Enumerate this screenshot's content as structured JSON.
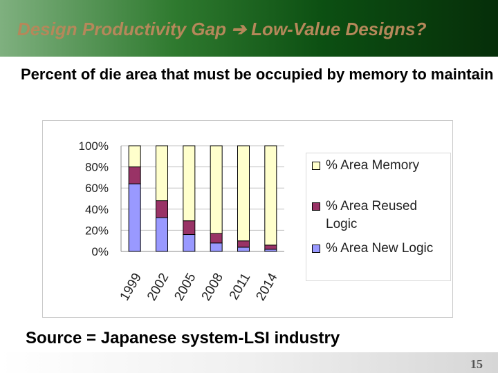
{
  "slide": {
    "title": "Design Productivity Gap ➔ Low-Value Designs?",
    "subtitle": "Percent of die area that must be occupied by memory to maintain SOC design productivity",
    "source": "Source = Japanese system-LSI industry",
    "page_number": "15"
  },
  "chart_data": {
    "type": "bar",
    "stacked": true,
    "categories": [
      "1999",
      "2002",
      "2005",
      "2008",
      "2011",
      "2014"
    ],
    "series": [
      {
        "name": "% Area New Logic",
        "color": "#9999ff",
        "values": [
          64,
          32,
          16,
          8,
          4,
          2
        ]
      },
      {
        "name": "% Area Reused Logic",
        "color": "#993366",
        "values": [
          16,
          16,
          13,
          9,
          6,
          4
        ]
      },
      {
        "name": "% Area Memory",
        "color": "#ffffcc",
        "values": [
          20,
          52,
          71,
          83,
          90,
          94
        ]
      }
    ],
    "legend_order": [
      2,
      1,
      0
    ],
    "ylim": [
      0,
      100
    ],
    "yticks": [
      "0%",
      "20%",
      "40%",
      "60%",
      "80%",
      "100%"
    ],
    "legend_position": "right"
  }
}
